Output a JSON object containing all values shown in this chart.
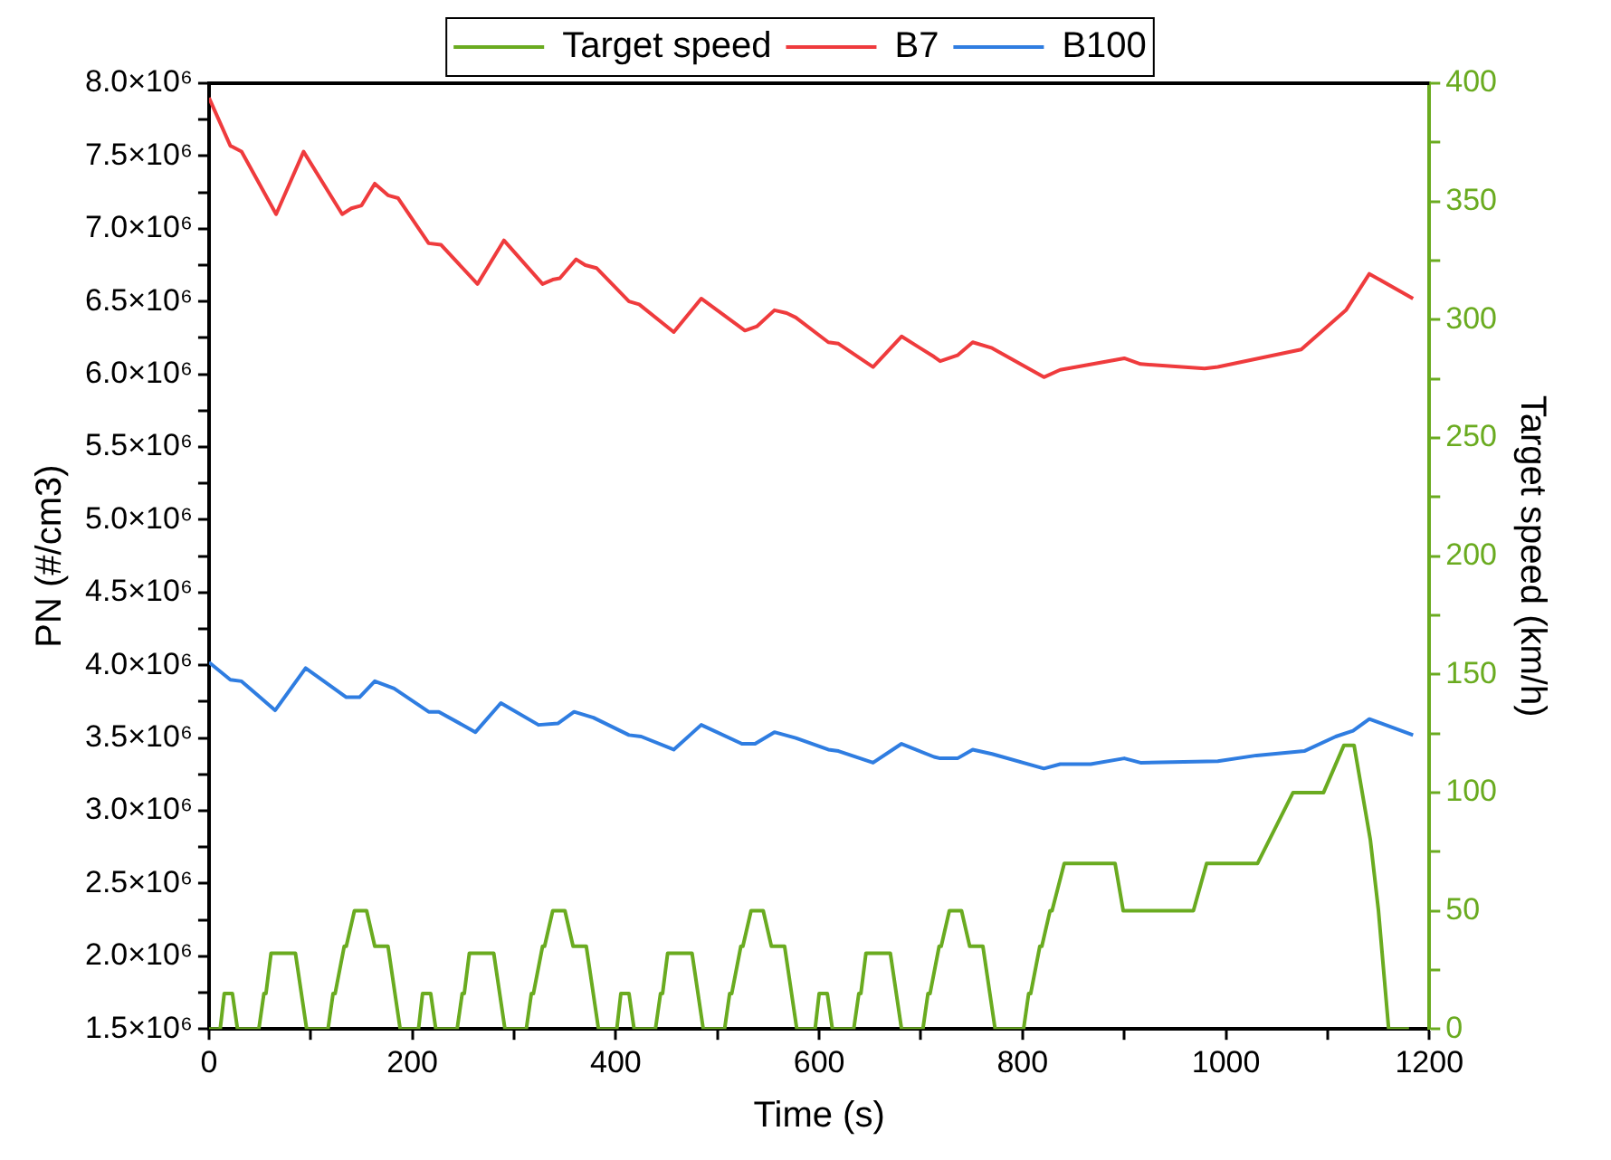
{
  "chart_data": {
    "type": "line",
    "xlabel": "Time (s)",
    "ylabel": "PN (#/cm3)",
    "y2label": "Target speed (km/h)",
    "legend": "top",
    "grid": false,
    "marker": "none",
    "line_style": "solid",
    "xlim": [
      0,
      1200
    ],
    "xticks": [
      0,
      {
        "value": 100,
        "label": null
      },
      200,
      {
        "value": 300,
        "label": null
      },
      400,
      {
        "value": 500,
        "label": null
      },
      600,
      {
        "value": 700,
        "label": null
      },
      800,
      {
        "value": 900,
        "label": null
      },
      1000,
      {
        "value": 1100,
        "label": null
      },
      1200
    ],
    "ylim": [
      1500000,
      8000000
    ],
    "yticks": [
      {
        "value": 1500000,
        "label": "1.5×10⁶"
      },
      {
        "value": 1750000,
        "label": null
      },
      {
        "value": 2000000,
        "label": "2.0×10⁶"
      },
      {
        "value": 2250000,
        "label": null
      },
      {
        "value": 2500000,
        "label": "2.5×10⁶"
      },
      {
        "value": 2750000,
        "label": null
      },
      {
        "value": 3000000,
        "label": "3.0×10⁶"
      },
      {
        "value": 3250000,
        "label": null
      },
      {
        "value": 3500000,
        "label": "3.5×10⁶"
      },
      {
        "value": 3750000,
        "label": null
      },
      {
        "value": 4000000,
        "label": "4.0×10⁶"
      },
      {
        "value": 4250000,
        "label": null
      },
      {
        "value": 4500000,
        "label": "4.5×10⁶"
      },
      {
        "value": 4750000,
        "label": null
      },
      {
        "value": 5000000,
        "label": "5.0×10⁶"
      },
      {
        "value": 5250000,
        "label": null
      },
      {
        "value": 5500000,
        "label": "5.5×10⁶"
      },
      {
        "value": 5750000,
        "label": null
      },
      {
        "value": 6000000,
        "label": "6.0×10⁶"
      },
      {
        "value": 6250000,
        "label": null
      },
      {
        "value": 6500000,
        "label": "6.5×10⁶"
      },
      {
        "value": 6750000,
        "label": null
      },
      {
        "value": 7000000,
        "label": "7.0×10⁶"
      },
      {
        "value": 7250000,
        "label": null
      },
      {
        "value": 7500000,
        "label": "7.5×10⁶"
      },
      {
        "value": 7750000,
        "label": null
      },
      {
        "value": 8000000,
        "label": "8.0×10⁶"
      }
    ],
    "y2lim": [
      0,
      400
    ],
    "y2ticks": [
      0,
      {
        "value": 25,
        "label": null
      },
      50,
      {
        "value": 75,
        "label": null
      },
      100,
      {
        "value": 125,
        "label": null
      },
      150,
      {
        "value": 175,
        "label": null
      },
      200,
      {
        "value": 225,
        "label": null
      },
      250,
      {
        "value": 275,
        "label": null
      },
      300,
      {
        "value": 325,
        "label": null
      },
      350,
      {
        "value": 375,
        "label": null
      },
      400
    ],
    "series": [
      {
        "name": "Target speed",
        "color": "#6aab20",
        "axis": "y2",
        "x": [
          0,
          11,
          15,
          23,
          28,
          49,
          54,
          56,
          61,
          85,
          96,
          117,
          122,
          124,
          133,
          135,
          143,
          155,
          163,
          176,
          188,
          195,
          206,
          210,
          218,
          223,
          244,
          249,
          251,
          256,
          280,
          291,
          312,
          317,
          319,
          328,
          330,
          338,
          350,
          358,
          371,
          383,
          390,
          401,
          405,
          413,
          418,
          439,
          444,
          446,
          451,
          475,
          486,
          507,
          512,
          514,
          523,
          525,
          533,
          545,
          553,
          566,
          578,
          585,
          596,
          600,
          608,
          613,
          634,
          639,
          641,
          646,
          670,
          681,
          702,
          707,
          709,
          718,
          720,
          728,
          740,
          748,
          761,
          773,
          780,
          801,
          806,
          808,
          817,
          819,
          827,
          829,
          841,
          891,
          899,
          968,
          981,
          1031,
          1066,
          1096,
          1116,
          1126,
          1142,
          1150,
          1160,
          1180
        ],
        "values": [
          0,
          0,
          15,
          15,
          0,
          0,
          15,
          15,
          32,
          32,
          0,
          0,
          15,
          15,
          35,
          35,
          50,
          50,
          35,
          35,
          0,
          0,
          0,
          15,
          15,
          0,
          0,
          15,
          15,
          32,
          32,
          0,
          0,
          15,
          15,
          35,
          35,
          50,
          50,
          35,
          35,
          0,
          0,
          0,
          15,
          15,
          0,
          0,
          15,
          15,
          32,
          32,
          0,
          0,
          15,
          15,
          35,
          35,
          50,
          50,
          35,
          35,
          0,
          0,
          0,
          15,
          15,
          0,
          0,
          15,
          15,
          32,
          32,
          0,
          0,
          15,
          15,
          35,
          35,
          50,
          50,
          35,
          35,
          0,
          0,
          0,
          15,
          15,
          35,
          35,
          50,
          50,
          70,
          70,
          50,
          50,
          70,
          70,
          100,
          100,
          120,
          120,
          80,
          50,
          0,
          0
        ]
      },
      {
        "name": "B7",
        "color": "#ef3b3d",
        "x": [
          0,
          21,
          32,
          66,
          93,
          131,
          140,
          150,
          163,
          176,
          186,
          216,
          228,
          264,
          290,
          328,
          338,
          345,
          361,
          370,
          381,
          413,
          423,
          457,
          484,
          527,
          539,
          556,
          568,
          577,
          609,
          619,
          653,
          681,
          713,
          719,
          736,
          751,
          770,
          821,
          837,
          900,
          916,
          979,
          992,
          1074,
          1118,
          1141,
          1184
        ],
        "values": [
          7900000,
          7570000,
          7530000,
          7100000,
          7530000,
          7100000,
          7140000,
          7160000,
          7310000,
          7230000,
          7210000,
          6900000,
          6890000,
          6620000,
          6920000,
          6620000,
          6650000,
          6660000,
          6790000,
          6750000,
          6730000,
          6500000,
          6480000,
          6290000,
          6520000,
          6300000,
          6330000,
          6440000,
          6420000,
          6390000,
          6220000,
          6210000,
          6050000,
          6260000,
          6120000,
          6090000,
          6130000,
          6220000,
          6180000,
          5980000,
          6030000,
          6110000,
          6070000,
          6040000,
          6050000,
          6170000,
          6440000,
          6690000,
          6520000
        ]
      },
      {
        "name": "B100",
        "color": "#2f7de1",
        "x": [
          0,
          21,
          32,
          65,
          95,
          135,
          148,
          163,
          182,
          216,
          226,
          262,
          287,
          324,
          343,
          359,
          378,
          413,
          425,
          457,
          484,
          524,
          537,
          556,
          577,
          609,
          619,
          653,
          681,
          713,
          719,
          736,
          751,
          770,
          821,
          837,
          867,
          900,
          916,
          992,
          1030,
          1077,
          1108,
          1125,
          1141,
          1184
        ],
        "values": [
          4020000,
          3900000,
          3890000,
          3690000,
          3980000,
          3780000,
          3780000,
          3890000,
          3840000,
          3680000,
          3680000,
          3540000,
          3740000,
          3590000,
          3600000,
          3680000,
          3640000,
          3520000,
          3510000,
          3420000,
          3590000,
          3460000,
          3460000,
          3540000,
          3500000,
          3420000,
          3410000,
          3330000,
          3460000,
          3370000,
          3360000,
          3360000,
          3420000,
          3390000,
          3290000,
          3320000,
          3320000,
          3360000,
          3330000,
          3340000,
          3380000,
          3410000,
          3510000,
          3550000,
          3630000,
          3520000
        ]
      }
    ]
  }
}
